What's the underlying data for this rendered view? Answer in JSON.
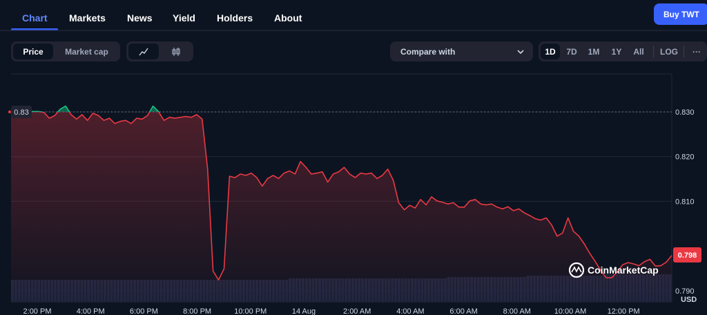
{
  "nav": {
    "tabs": [
      "Chart",
      "Markets",
      "News",
      "Yield",
      "Holders",
      "About"
    ],
    "buy_label": "Buy TWT"
  },
  "toolbar": {
    "price_label": "Price",
    "market_cap_label": "Market cap",
    "chart_type_icons": [
      "line-chart-icon",
      "candlestick-icon"
    ],
    "compare_label": "Compare with",
    "ranges": [
      "1D",
      "7D",
      "1M",
      "1Y",
      "All"
    ],
    "log_label": "LOG",
    "more_label": "···"
  },
  "chart_data": {
    "type": "line",
    "x_ticks": [
      "2:00 PM",
      "4:00 PM",
      "6:00 PM",
      "8:00 PM",
      "10:00 PM",
      "14 Aug",
      "2:00 AM",
      "4:00 AM",
      "6:00 AM",
      "8:00 AM",
      "10:00 AM",
      "12:00 PM"
    ],
    "y_ticks": [
      "0.830",
      "0.820",
      "0.810",
      "0.790"
    ],
    "ylim": [
      0.7875,
      0.8385
    ],
    "open_price": 0.83,
    "open_label": "0.83",
    "current_price": 0.798,
    "current_label": "0.798",
    "currency_label": "USD",
    "watermark": "CoinMarketCap",
    "up_color": "#16c784",
    "down_color": "#ea3943",
    "values": [
      0.83,
      0.8306,
      0.8313,
      0.8303,
      0.8301,
      0.8301,
      0.8299,
      0.8286,
      0.8292,
      0.8306,
      0.8313,
      0.8294,
      0.8284,
      0.8294,
      0.8281,
      0.8297,
      0.8292,
      0.8281,
      0.8286,
      0.8274,
      0.8279,
      0.8281,
      0.8274,
      0.8286,
      0.8284,
      0.8292,
      0.8313,
      0.8301,
      0.8281,
      0.8288,
      0.8286,
      0.8288,
      0.829,
      0.8288,
      0.8294,
      0.8284,
      0.8172,
      0.7944,
      0.7924,
      0.7949,
      0.8156,
      0.8153,
      0.8161,
      0.8158,
      0.8163,
      0.8153,
      0.8134,
      0.8151,
      0.8158,
      0.8151,
      0.8163,
      0.8168,
      0.8161,
      0.8189,
      0.8176,
      0.8161,
      0.8163,
      0.8166,
      0.8143,
      0.8161,
      0.8166,
      0.8176,
      0.8161,
      0.8153,
      0.8163,
      0.8161,
      0.8163,
      0.8151,
      0.8158,
      0.8172,
      0.8147,
      0.8097,
      0.8081,
      0.8091,
      0.8085,
      0.8104,
      0.8092,
      0.811,
      0.8101,
      0.8098,
      0.8094,
      0.8097,
      0.8087,
      0.8087,
      0.8101,
      0.8104,
      0.8094,
      0.8092,
      0.8094,
      0.8087,
      0.8083,
      0.8088,
      0.8079,
      0.8083,
      0.8074,
      0.8068,
      0.8061,
      0.8058,
      0.8063,
      0.8047,
      0.8022,
      0.8029,
      0.8063,
      0.8033,
      0.8022,
      0.8004,
      0.7983,
      0.7965,
      0.7945,
      0.7929,
      0.7929,
      0.7942,
      0.7958,
      0.7963,
      0.796,
      0.7956,
      0.7965,
      0.797,
      0.7955,
      0.7956,
      0.7964,
      0.7979
    ],
    "volume_bar_levels": [
      0.96,
      0.96,
      0.96,
      0.97,
      0.97,
      0.98,
      0.99,
      1.0
    ]
  }
}
